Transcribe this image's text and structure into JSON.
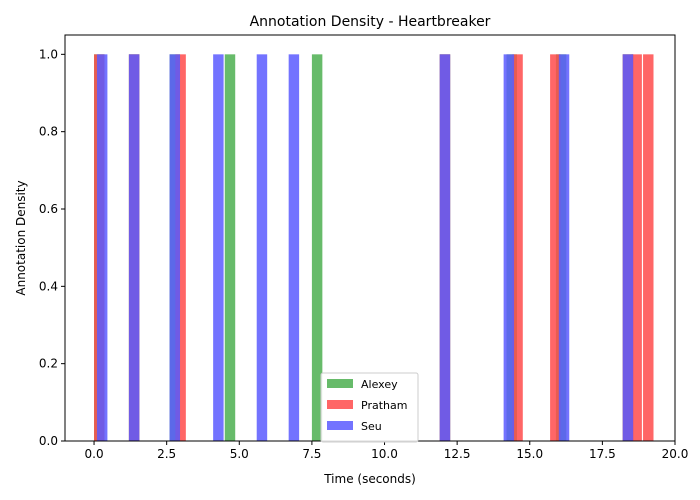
{
  "chart_data": {
    "type": "bar",
    "title": "Annotation Density - Heartbreaker",
    "xlabel": "Time (seconds)",
    "ylabel": "Annotation Density",
    "xlim": [
      -1.0,
      20.0
    ],
    "ylim": [
      0,
      1.05
    ],
    "xticks": [
      "0.0",
      "2.5",
      "5.0",
      "7.5",
      "10.0",
      "12.5",
      "15.0",
      "17.5",
      "20.0"
    ],
    "xtick_values": [
      0,
      2.5,
      5,
      7.5,
      10,
      12.5,
      15,
      17.5,
      20
    ],
    "yticks": [
      "0.0",
      "0.2",
      "0.4",
      "0.6",
      "0.8",
      "1.0"
    ],
    "ytick_values": [
      0,
      0.2,
      0.4,
      0.6,
      0.8,
      1.0
    ],
    "bin_width": 0.36,
    "grid": false,
    "legend_position": "lower-center",
    "series": [
      {
        "name": "Alexey",
        "color": "#4CAF50",
        "opacity": 0.85,
        "bins": [
          0.0,
          1.2,
          2.6,
          4.5,
          7.5,
          11.9,
          14.2,
          15.9,
          18.2
        ]
      },
      {
        "name": "Pratham",
        "color": "#FF4B4B",
        "opacity": 0.85,
        "bins": [
          0.0,
          1.2,
          2.8,
          11.9,
          14.4,
          15.7,
          18.2,
          18.5,
          18.9
        ]
      },
      {
        "name": "Seu",
        "color": "#5A5AFF",
        "opacity": 0.85,
        "bins": [
          0.1,
          1.2,
          2.6,
          4.1,
          5.6,
          6.7,
          11.9,
          14.1,
          16.0,
          18.2
        ]
      }
    ]
  }
}
